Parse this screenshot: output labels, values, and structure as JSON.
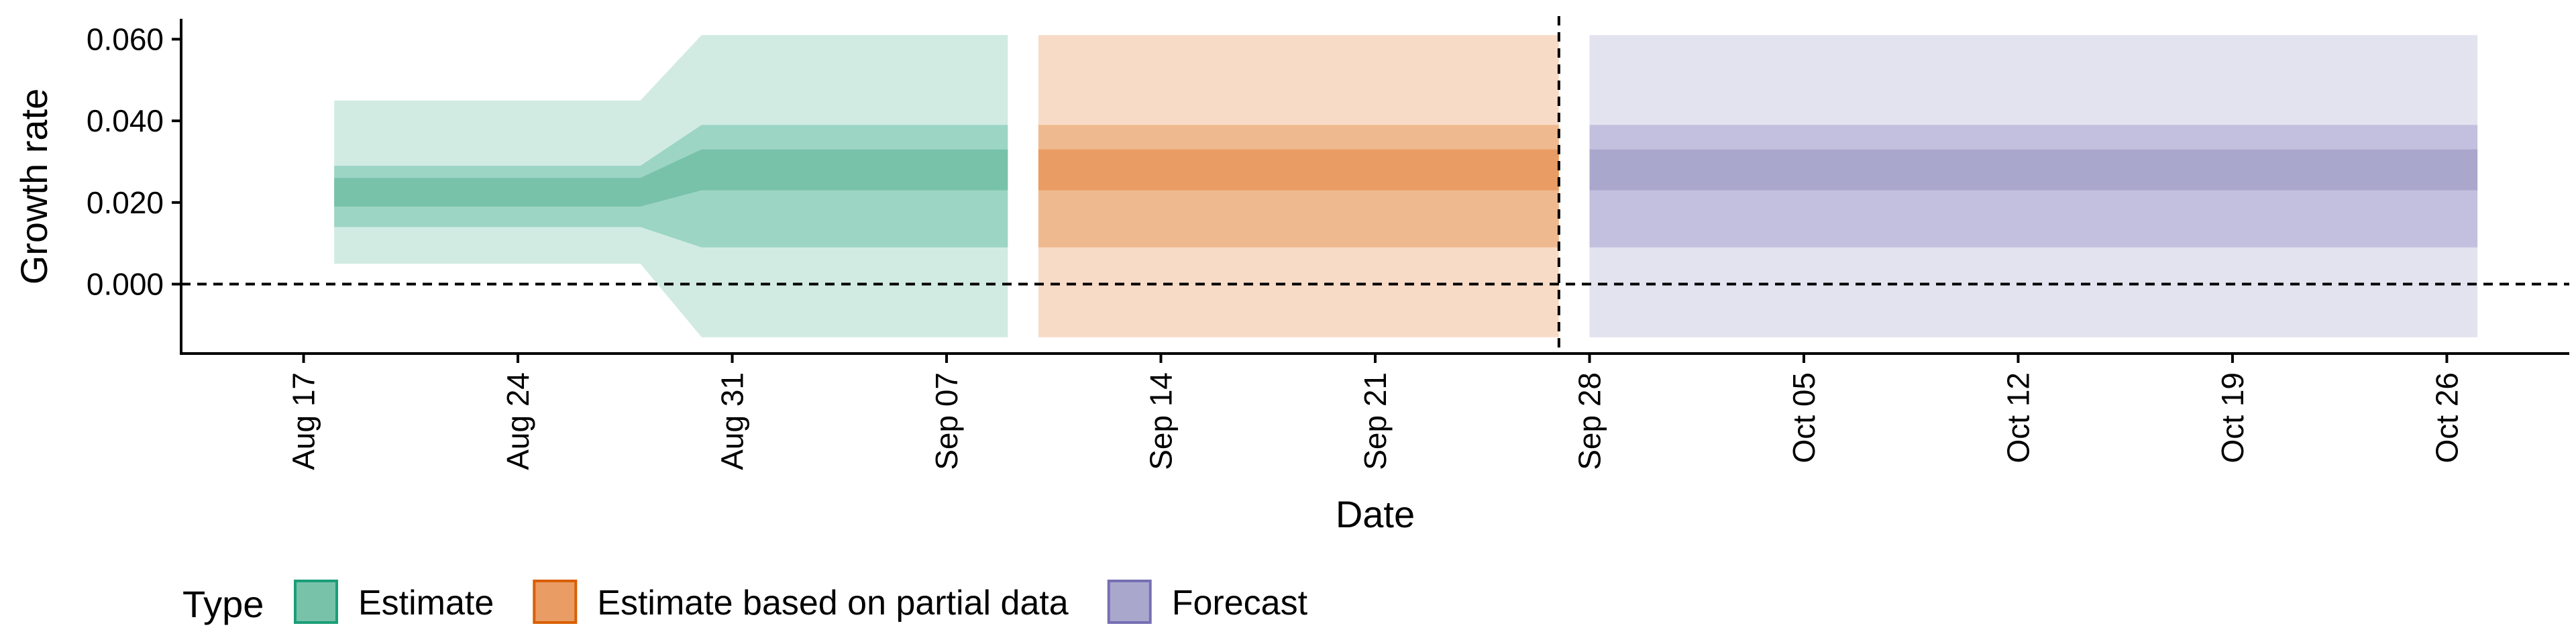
{
  "chart_data": {
    "type": "area",
    "title": "",
    "xlabel": "Date",
    "ylabel": "Growth rate",
    "x_axis_type": "date",
    "xlim": [
      "2020-08-13",
      "2020-10-30"
    ],
    "ylim": [
      -0.017,
      0.065
    ],
    "x_ticks": [
      "2020-08-17",
      "2020-08-24",
      "2020-08-31",
      "2020-09-07",
      "2020-09-14",
      "2020-09-21",
      "2020-09-28",
      "2020-10-05",
      "2020-10-12",
      "2020-10-19",
      "2020-10-26"
    ],
    "x_tick_labels": [
      "Aug 17",
      "Aug 24",
      "Aug 31",
      "Sep 07",
      "Sep 14",
      "Sep 21",
      "Sep 28",
      "Oct 05",
      "Oct 12",
      "Oct 19",
      "Oct 26"
    ],
    "y_ticks": [
      0.0,
      0.02,
      0.04,
      0.06
    ],
    "y_tick_labels": [
      "0.000",
      "0.020",
      "0.040",
      "0.060"
    ],
    "grid": false,
    "hline": {
      "y": 0,
      "style": "dashed"
    },
    "vline": {
      "x": "2020-09-27",
      "style": "dashed"
    },
    "legend": {
      "title": "Type",
      "position": "bottom",
      "entries": [
        {
          "label": "Estimate",
          "fill": "#78c2aa",
          "stroke": "#1b9e77"
        },
        {
          "label": "Estimate based on partial data",
          "fill": "#e99c63",
          "stroke": "#d95f02"
        },
        {
          "label": "Forecast",
          "fill": "#aaa7cd",
          "stroke": "#7570b3"
        }
      ]
    },
    "band_colors": {
      "Estimate": [
        "#d1ebe3",
        "#9cd5c3",
        "#78c2aa"
      ],
      "Estimate based on partial data": [
        "#f8dbc7",
        "#efb98f",
        "#e99c63"
      ],
      "Forecast": [
        "#e3e2ef",
        "#c2bfdf",
        "#aaa7cd"
      ]
    },
    "series": [
      {
        "name": "Estimate",
        "x": [
          "2020-08-18",
          "2020-08-28",
          "2020-08-30",
          "2020-09-09"
        ],
        "ci90": [
          [
            0.005,
            0.045
          ],
          [
            0.005,
            0.045
          ],
          [
            -0.013,
            0.061
          ],
          [
            -0.013,
            0.061
          ]
        ],
        "ci50": [
          [
            0.014,
            0.029
          ],
          [
            0.014,
            0.029
          ],
          [
            0.009,
            0.039
          ],
          [
            0.009,
            0.039
          ]
        ],
        "ci20": [
          [
            0.019,
            0.026
          ],
          [
            0.019,
            0.026
          ],
          [
            0.023,
            0.033
          ],
          [
            0.023,
            0.033
          ]
        ]
      },
      {
        "name": "Estimate based on partial data",
        "x": [
          "2020-09-10",
          "2020-09-27"
        ],
        "ci90": [
          [
            -0.013,
            0.061
          ],
          [
            -0.013,
            0.061
          ]
        ],
        "ci50": [
          [
            0.009,
            0.039
          ],
          [
            0.009,
            0.039
          ]
        ],
        "ci20": [
          [
            0.023,
            0.033
          ],
          [
            0.023,
            0.033
          ]
        ]
      },
      {
        "name": "Forecast",
        "x": [
          "2020-09-28",
          "2020-10-27"
        ],
        "ci90": [
          [
            -0.013,
            0.061
          ],
          [
            -0.013,
            0.061
          ]
        ],
        "ci50": [
          [
            0.009,
            0.039
          ],
          [
            0.009,
            0.039
          ]
        ],
        "ci20": [
          [
            0.023,
            0.033
          ],
          [
            0.023,
            0.033
          ]
        ]
      }
    ]
  }
}
